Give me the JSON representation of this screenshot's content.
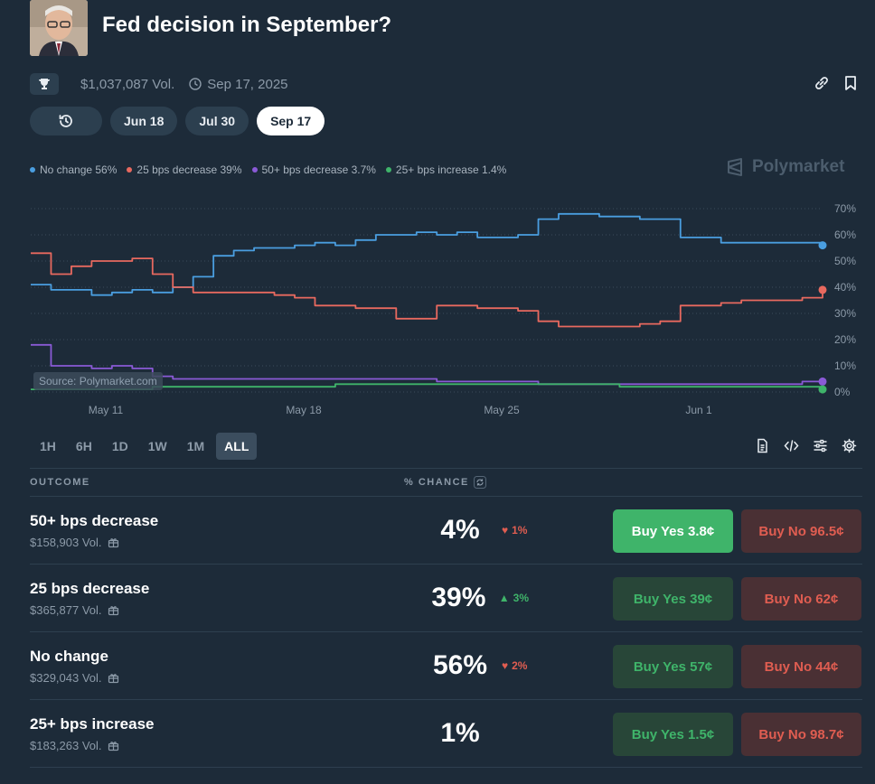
{
  "header": {
    "title": "Fed decision in September?"
  },
  "meta": {
    "volume": "$1,037,087 Vol.",
    "end_date": "Sep 17, 2025"
  },
  "dates": {
    "tabs": [
      "Jun 18",
      "Jul 30",
      "Sep 17"
    ],
    "active": "Sep 17"
  },
  "legend": [
    {
      "label": "No change 56%",
      "color": "#4a9ee0"
    },
    {
      "label": "25 bps decrease 39%",
      "color": "#e8695f"
    },
    {
      "label": "50+ bps decrease 3.7%",
      "color": "#8a5ad6"
    },
    {
      "label": "25+ bps increase 1.4%",
      "color": "#3fb46a"
    }
  ],
  "brand": "Polymarket",
  "watermark": "Source: Polymarket.com",
  "chart_data": {
    "type": "line",
    "x_ticks": [
      "May 11",
      "May 18",
      "May 25",
      "Jun 1"
    ],
    "y_ticks": [
      "70%",
      "60%",
      "50%",
      "40%",
      "30%",
      "20%",
      "10%",
      "0%"
    ],
    "ylim": [
      0,
      70
    ],
    "grid": true,
    "series": [
      {
        "name": "No change",
        "color": "#4a9ee0",
        "values": [
          41,
          39,
          39,
          37,
          38,
          39,
          38,
          40,
          44,
          52,
          54,
          55,
          55,
          56,
          57,
          56,
          58,
          60,
          60,
          61,
          60,
          61,
          59,
          59,
          60,
          66,
          68,
          68,
          67,
          67,
          66,
          66,
          59,
          59,
          57,
          57,
          57,
          57,
          57,
          56
        ]
      },
      {
        "name": "25 bps decrease",
        "color": "#e8695f",
        "values": [
          53,
          45,
          48,
          50,
          50,
          51,
          45,
          40,
          38,
          38,
          38,
          38,
          37,
          36,
          33,
          33,
          32,
          32,
          28,
          28,
          33,
          33,
          32,
          32,
          31,
          27,
          25,
          25,
          25,
          25,
          26,
          27,
          33,
          33,
          34,
          35,
          35,
          35,
          36,
          39
        ]
      },
      {
        "name": "50+ bps decrease",
        "color": "#8a5ad6",
        "values": [
          18,
          10,
          10,
          9,
          10,
          9,
          6,
          5,
          5,
          5,
          5,
          5,
          5,
          5,
          5,
          5,
          5,
          5,
          5,
          5,
          4,
          4,
          4,
          4,
          4,
          3,
          3,
          3,
          3,
          3,
          3,
          3,
          3,
          3,
          3,
          3,
          3,
          3,
          4,
          4
        ]
      },
      {
        "name": "25+ bps increase",
        "color": "#3fb46a",
        "values": [
          1,
          1,
          1,
          1,
          1,
          1,
          2,
          2,
          2,
          2,
          2,
          2,
          2,
          2,
          2,
          3,
          3,
          3,
          3,
          3,
          3,
          3,
          3,
          3,
          3,
          3,
          3,
          3,
          3,
          2,
          2,
          2,
          2,
          2,
          2,
          2,
          2,
          2,
          2,
          1
        ]
      }
    ]
  },
  "ranges": {
    "items": [
      "1H",
      "6H",
      "1D",
      "1W",
      "1M",
      "ALL"
    ],
    "active": "ALL"
  },
  "table": {
    "col_outcome": "OUTCOME",
    "col_chance": "% CHANCE",
    "rows": [
      {
        "name": "50+ bps decrease",
        "vol": "$158,903 Vol.",
        "pct": "4%",
        "change": "1%",
        "dir": "down",
        "yes": "Buy Yes 3.8¢",
        "no": "Buy No 96.5¢",
        "yes_highlight": true
      },
      {
        "name": "25 bps decrease",
        "vol": "$365,877 Vol.",
        "pct": "39%",
        "change": "3%",
        "dir": "up",
        "yes": "Buy Yes 39¢",
        "no": "Buy No 62¢",
        "yes_highlight": false
      },
      {
        "name": "No change",
        "vol": "$329,043 Vol.",
        "pct": "56%",
        "change": "2%",
        "dir": "down",
        "yes": "Buy Yes 57¢",
        "no": "Buy No 44¢",
        "yes_highlight": false
      },
      {
        "name": "25+ bps increase",
        "vol": "$183,263 Vol.",
        "pct": "1%",
        "change": "",
        "dir": "",
        "yes": "Buy Yes 1.5¢",
        "no": "Buy No 98.7¢",
        "yes_highlight": false
      }
    ]
  }
}
